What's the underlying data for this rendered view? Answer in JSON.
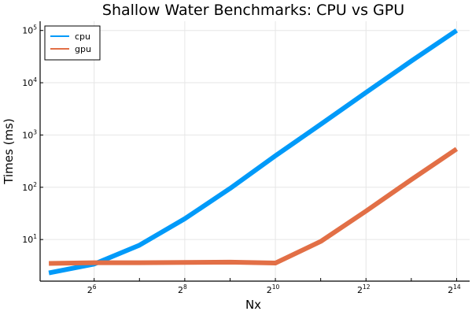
{
  "chart_data": {
    "type": "line",
    "title": "Shallow Water Benchmarks: CPU vs GPU",
    "xlabel": "Nx",
    "ylabel": "Times (ms)",
    "x_scale": "log2",
    "y_scale": "log10",
    "x": [
      32,
      64,
      128,
      256,
      512,
      1024,
      2048,
      4096,
      8192,
      16384
    ],
    "xlim": [
      28,
      20000
    ],
    "ylim": [
      1.6,
      150000
    ],
    "xticks": [
      {
        "value": 64,
        "base": "2",
        "exp": "6"
      },
      {
        "value": 256,
        "base": "2",
        "exp": "8"
      },
      {
        "value": 1024,
        "base": "2",
        "exp": "10"
      },
      {
        "value": 4096,
        "base": "2",
        "exp": "12"
      },
      {
        "value": 16384,
        "base": "2",
        "exp": "14"
      }
    ],
    "xminor": [
      128,
      512,
      2048,
      8192
    ],
    "yticks": [
      {
        "value": 10,
        "base": "10",
        "exp": "1"
      },
      {
        "value": 100,
        "base": "10",
        "exp": "2"
      },
      {
        "value": 1000,
        "base": "10",
        "exp": "3"
      },
      {
        "value": 10000,
        "base": "10",
        "exp": "4"
      },
      {
        "value": 100000,
        "base": "10",
        "exp": "5"
      }
    ],
    "grid": true,
    "legend_position": "top-left",
    "series": [
      {
        "name": "cpu",
        "color": "#009af9",
        "values": [
          2.3,
          3.4,
          7.8,
          25,
          95,
          400,
          1600,
          6500,
          26000,
          100000
        ]
      },
      {
        "name": "gpu",
        "color": "#e26f46",
        "values": [
          3.5,
          3.6,
          3.6,
          3.65,
          3.7,
          3.55,
          9.2,
          35,
          140,
          540
        ]
      }
    ]
  }
}
